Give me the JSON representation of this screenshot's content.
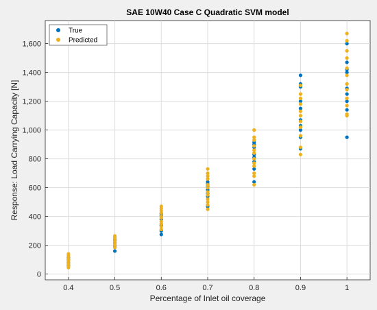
{
  "chart_data": {
    "type": "scatter",
    "title": "SAE 10W40 Case C Quadratic SVM model",
    "xlabel": "Percentage of Inlet oil coverage",
    "ylabel": "Response: Load Carrying Capacity [N]",
    "xlim": [
      0.35,
      1.05
    ],
    "ylim": [
      -40,
      1760
    ],
    "xticks": [
      0.4,
      0.5,
      0.6,
      0.7,
      0.8,
      0.9,
      1
    ],
    "xtick_labels": [
      "0.4",
      "0.5",
      "0.6",
      "0.7",
      "0.8",
      "0.9",
      "1"
    ],
    "yticks": [
      0,
      200,
      400,
      600,
      800,
      1000,
      1200,
      1400,
      1600
    ],
    "ytick_labels": [
      "0",
      "200",
      "400",
      "600",
      "800",
      "1,000",
      "1,200",
      "1,400",
      "1,600"
    ],
    "grid": true,
    "legend_position": "top-left",
    "series": [
      {
        "name": "True",
        "color": "#0072BD",
        "points": [
          [
            0.4,
            60
          ],
          [
            0.4,
            80
          ],
          [
            0.4,
            100
          ],
          [
            0.4,
            115
          ],
          [
            0.5,
            160
          ],
          [
            0.5,
            195
          ],
          [
            0.5,
            215
          ],
          [
            0.5,
            235
          ],
          [
            0.6,
            275
          ],
          [
            0.6,
            300
          ],
          [
            0.6,
            340
          ],
          [
            0.6,
            380
          ],
          [
            0.6,
            405
          ],
          [
            0.6,
            420
          ],
          [
            0.7,
            470
          ],
          [
            0.7,
            540
          ],
          [
            0.7,
            560
          ],
          [
            0.7,
            585
          ],
          [
            0.7,
            610
          ],
          [
            0.7,
            625
          ],
          [
            0.7,
            640
          ],
          [
            0.8,
            640
          ],
          [
            0.8,
            730
          ],
          [
            0.8,
            780
          ],
          [
            0.8,
            810
          ],
          [
            0.8,
            830
          ],
          [
            0.8,
            880
          ],
          [
            0.8,
            900
          ],
          [
            0.8,
            915
          ],
          [
            0.9,
            870
          ],
          [
            0.9,
            950
          ],
          [
            0.9,
            1000
          ],
          [
            0.9,
            1030
          ],
          [
            0.9,
            1070
          ],
          [
            0.9,
            1150
          ],
          [
            0.9,
            1200
          ],
          [
            0.9,
            1300
          ],
          [
            0.9,
            1320
          ],
          [
            0.9,
            1380
          ],
          [
            1,
            950
          ],
          [
            1,
            1140
          ],
          [
            1,
            1200
          ],
          [
            1,
            1250
          ],
          [
            1,
            1290
          ],
          [
            1,
            1400
          ],
          [
            1,
            1420
          ],
          [
            1,
            1470
          ],
          [
            1,
            1600
          ]
        ]
      },
      {
        "name": "Predicted",
        "color": "#EDB120",
        "points": [
          [
            0.4,
            45
          ],
          [
            0.4,
            55
          ],
          [
            0.4,
            70
          ],
          [
            0.4,
            85
          ],
          [
            0.4,
            95
          ],
          [
            0.4,
            105
          ],
          [
            0.4,
            120
          ],
          [
            0.4,
            130
          ],
          [
            0.4,
            140
          ],
          [
            0.5,
            185
          ],
          [
            0.5,
            200
          ],
          [
            0.5,
            210
          ],
          [
            0.5,
            220
          ],
          [
            0.5,
            230
          ],
          [
            0.5,
            245
          ],
          [
            0.5,
            255
          ],
          [
            0.5,
            265
          ],
          [
            0.6,
            310
          ],
          [
            0.6,
            330
          ],
          [
            0.6,
            350
          ],
          [
            0.6,
            365
          ],
          [
            0.6,
            390
          ],
          [
            0.6,
            400
          ],
          [
            0.6,
            425
          ],
          [
            0.6,
            440
          ],
          [
            0.6,
            455
          ],
          [
            0.6,
            470
          ],
          [
            0.7,
            450
          ],
          [
            0.7,
            480
          ],
          [
            0.7,
            500
          ],
          [
            0.7,
            520
          ],
          [
            0.7,
            550
          ],
          [
            0.7,
            570
          ],
          [
            0.7,
            600
          ],
          [
            0.7,
            620
          ],
          [
            0.7,
            660
          ],
          [
            0.7,
            680
          ],
          [
            0.7,
            700
          ],
          [
            0.7,
            730
          ],
          [
            0.8,
            620
          ],
          [
            0.8,
            680
          ],
          [
            0.8,
            700
          ],
          [
            0.8,
            750
          ],
          [
            0.8,
            770
          ],
          [
            0.8,
            800
          ],
          [
            0.8,
            840
          ],
          [
            0.8,
            860
          ],
          [
            0.8,
            890
          ],
          [
            0.8,
            930
          ],
          [
            0.8,
            950
          ],
          [
            0.8,
            1000
          ],
          [
            0.9,
            830
          ],
          [
            0.9,
            880
          ],
          [
            0.9,
            960
          ],
          [
            0.9,
            1020
          ],
          [
            0.9,
            1060
          ],
          [
            0.9,
            1100
          ],
          [
            0.9,
            1130
          ],
          [
            0.9,
            1180
          ],
          [
            0.9,
            1220
          ],
          [
            0.9,
            1250
          ],
          [
            0.9,
            1310
          ],
          [
            1,
            1100
          ],
          [
            1,
            1110
          ],
          [
            1,
            1170
          ],
          [
            1,
            1220
          ],
          [
            1,
            1280
          ],
          [
            1,
            1320
          ],
          [
            1,
            1380
          ],
          [
            1,
            1430
          ],
          [
            1,
            1500
          ],
          [
            1,
            1550
          ],
          [
            1,
            1620
          ],
          [
            1,
            1670
          ]
        ]
      }
    ]
  }
}
